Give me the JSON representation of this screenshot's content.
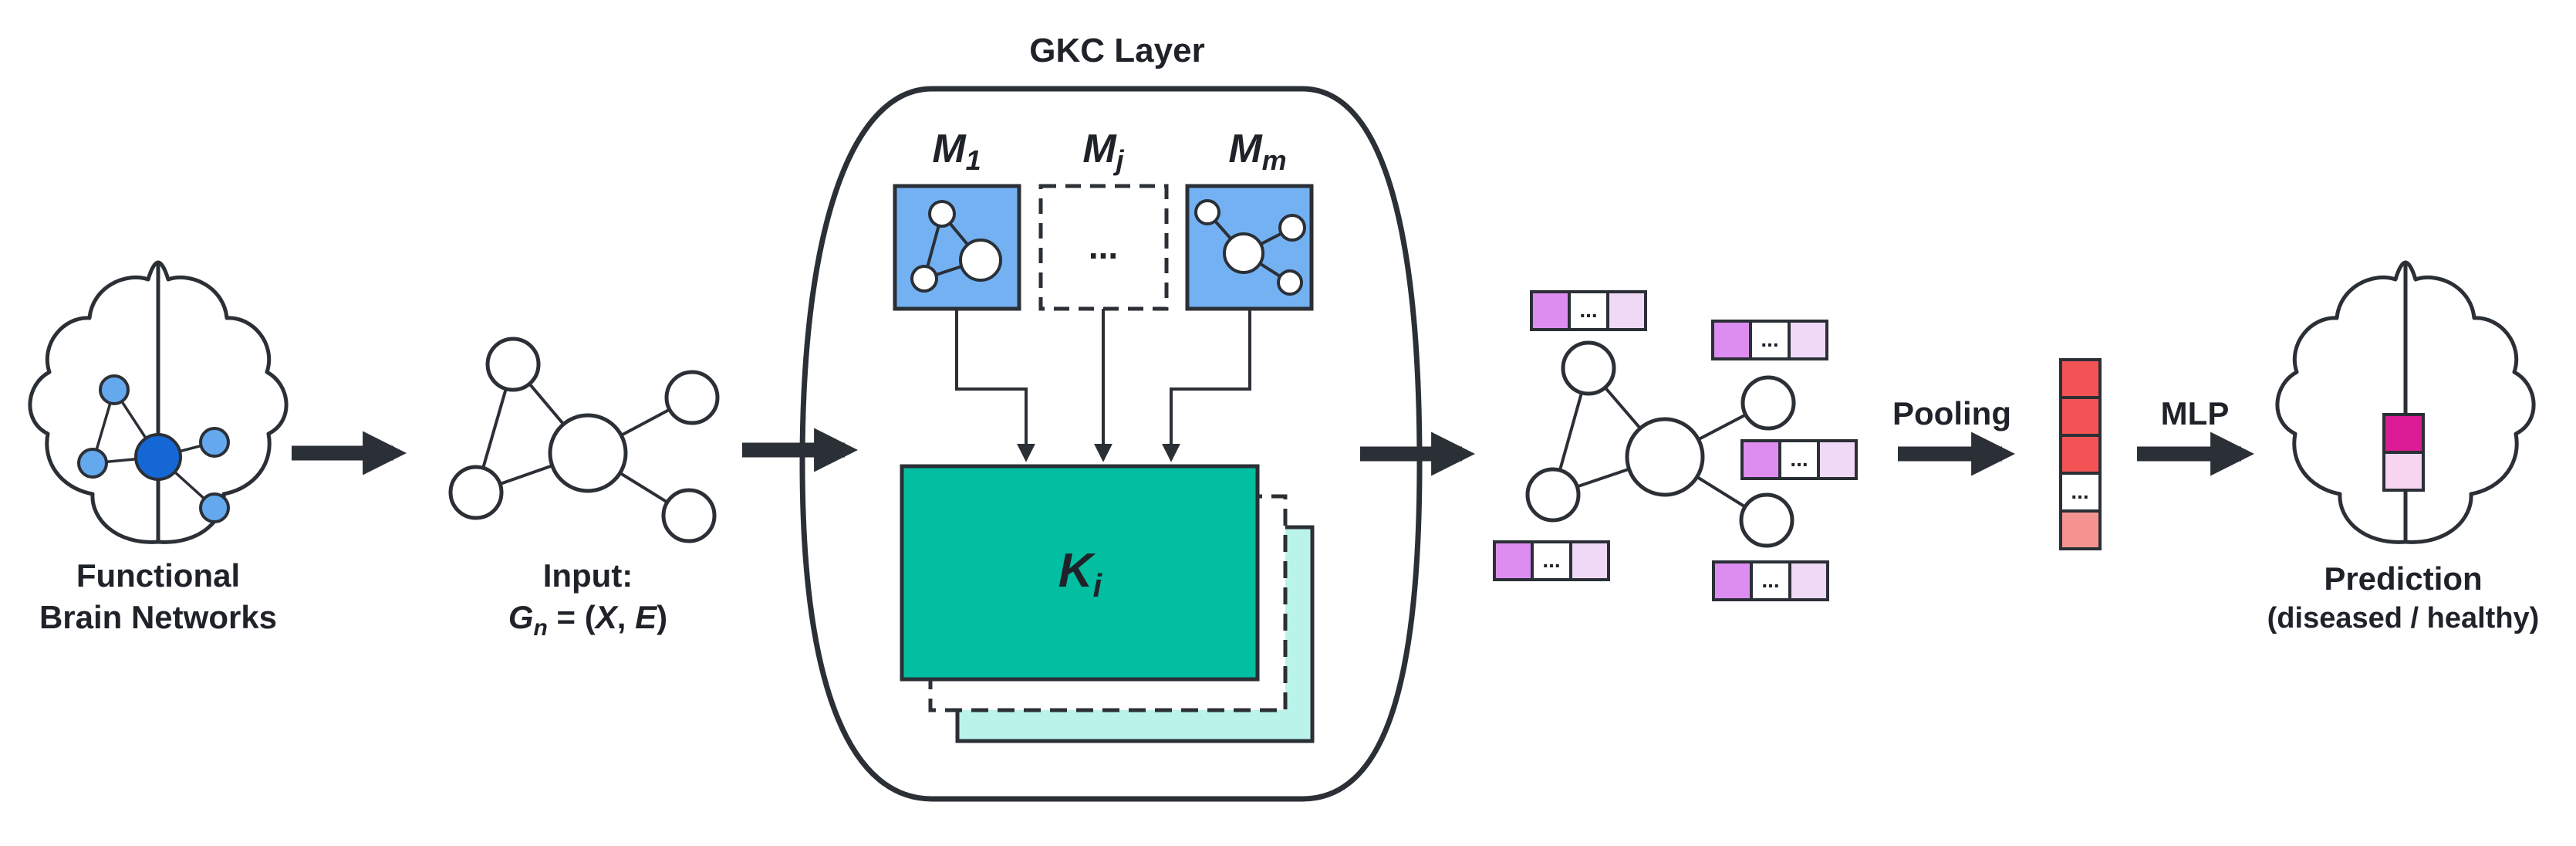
{
  "labels": {
    "brain_line1": "Functional",
    "brain_line2": "Brain Networks",
    "input_line1": "Input:",
    "input_G": "G",
    "input_n": "n",
    "input_eq": " = (",
    "input_X": "X",
    "input_comma": ", ",
    "input_E": "E",
    "input_close": ")",
    "gkc_title": "GKC Layer",
    "m1_base": "M",
    "m1_sub": "1",
    "mj_base": "M",
    "mj_sub": "j",
    "mm_base": "M",
    "mm_sub": "m",
    "mj_placeholder": "...",
    "kernel_base": "K",
    "kernel_sub": "i",
    "pooling": "Pooling",
    "mlp": "MLP",
    "pred_line1": "Prediction",
    "pred_line2": "(diseased / healthy)",
    "ellipsis": "..."
  },
  "colors": {
    "outline": "#2b2f36",
    "node_light_blue": "#64a8ee",
    "node_dark_blue": "#1467d4",
    "motif_blue": "#73b1f3",
    "kernel_teal": "#02bfa1",
    "kernel_shadow": "#b9f3ea",
    "feat_purple": "#dd8df0",
    "feat_light": "#f0d9f6",
    "pool_red": "#f25354",
    "pool_light_red": "#f59391",
    "pred_magenta": "#db1c94",
    "pred_pink": "#f7d5f0"
  }
}
